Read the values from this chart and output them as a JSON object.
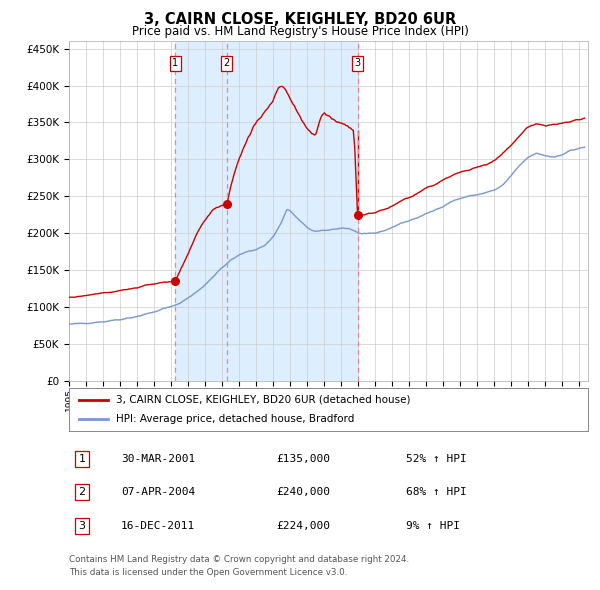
{
  "title": "3, CAIRN CLOSE, KEIGHLEY, BD20 6UR",
  "subtitle": "Price paid vs. HM Land Registry's House Price Index (HPI)",
  "legend_line1": "3, CAIRN CLOSE, KEIGHLEY, BD20 6UR (detached house)",
  "legend_line2": "HPI: Average price, detached house, Bradford",
  "footer_line1": "Contains HM Land Registry data © Crown copyright and database right 2024.",
  "footer_line2": "This data is licensed under the Open Government Licence v3.0.",
  "transactions": [
    {
      "num": 1,
      "date": "30-MAR-2001",
      "price": 135000,
      "pct": "52%",
      "dir": "↑"
    },
    {
      "num": 2,
      "date": "07-APR-2004",
      "price": 240000,
      "pct": "68%",
      "dir": "↑"
    },
    {
      "num": 3,
      "date": "16-DEC-2011",
      "price": 224000,
      "pct": "9%",
      "dir": "↑"
    }
  ],
  "transaction_dates_num": [
    2001.247,
    2004.27,
    2011.958
  ],
  "transaction_prices": [
    135000,
    240000,
    224000
  ],
  "hpi_color": "#7799cc",
  "price_color": "#cc0000",
  "background_color": "#ddeeff",
  "plot_bg": "#ffffff",
  "grid_color": "#cccccc",
  "dashed_line_color": "#ee8888",
  "ylim": [
    0,
    460000
  ],
  "yticks": [
    0,
    50000,
    100000,
    150000,
    200000,
    250000,
    300000,
    350000,
    400000,
    450000
  ],
  "xlim_start": 1995.0,
  "xlim_end": 2025.5,
  "shade_start": 2001.247,
  "shade_end": 2011.958,
  "hpi_anchors": [
    [
      1995.0,
      76000
    ],
    [
      1995.5,
      77000
    ],
    [
      1996.0,
      78000
    ],
    [
      1996.5,
      79000
    ],
    [
      1997.0,
      80000
    ],
    [
      1997.5,
      81500
    ],
    [
      1998.0,
      83000
    ],
    [
      1998.5,
      85000
    ],
    [
      1999.0,
      87000
    ],
    [
      1999.5,
      90000
    ],
    [
      2000.0,
      93000
    ],
    [
      2000.5,
      97000
    ],
    [
      2001.0,
      100000
    ],
    [
      2001.5,
      105000
    ],
    [
      2002.0,
      112000
    ],
    [
      2002.5,
      120000
    ],
    [
      2003.0,
      130000
    ],
    [
      2003.5,
      142000
    ],
    [
      2004.0,
      153000
    ],
    [
      2004.5,
      163000
    ],
    [
      2005.0,
      170000
    ],
    [
      2005.5,
      175000
    ],
    [
      2006.0,
      178000
    ],
    [
      2006.5,
      183000
    ],
    [
      2007.0,
      195000
    ],
    [
      2007.5,
      215000
    ],
    [
      2007.8,
      232000
    ],
    [
      2008.0,
      230000
    ],
    [
      2008.5,
      218000
    ],
    [
      2009.0,
      207000
    ],
    [
      2009.5,
      202000
    ],
    [
      2010.0,
      203000
    ],
    [
      2010.5,
      205000
    ],
    [
      2011.0,
      207000
    ],
    [
      2011.5,
      206000
    ],
    [
      2012.0,
      200000
    ],
    [
      2012.5,
      198000
    ],
    [
      2013.0,
      200000
    ],
    [
      2013.5,
      203000
    ],
    [
      2014.0,
      208000
    ],
    [
      2014.5,
      213000
    ],
    [
      2015.0,
      217000
    ],
    [
      2015.5,
      221000
    ],
    [
      2016.0,
      226000
    ],
    [
      2016.5,
      231000
    ],
    [
      2017.0,
      237000
    ],
    [
      2017.5,
      243000
    ],
    [
      2018.0,
      247000
    ],
    [
      2018.5,
      250000
    ],
    [
      2019.0,
      252000
    ],
    [
      2019.5,
      255000
    ],
    [
      2020.0,
      258000
    ],
    [
      2020.5,
      265000
    ],
    [
      2021.0,
      278000
    ],
    [
      2021.5,
      292000
    ],
    [
      2022.0,
      303000
    ],
    [
      2022.5,
      308000
    ],
    [
      2023.0,
      305000
    ],
    [
      2023.5,
      303000
    ],
    [
      2024.0,
      307000
    ],
    [
      2024.5,
      312000
    ],
    [
      2025.0,
      315000
    ],
    [
      2025.3,
      316000
    ]
  ],
  "price_anchors_seg1": [
    [
      1995.0,
      113000
    ],
    [
      1995.5,
      114000
    ],
    [
      1996.0,
      115500
    ],
    [
      1996.5,
      117000
    ],
    [
      1997.0,
      118500
    ],
    [
      1997.5,
      120000
    ],
    [
      1998.0,
      122000
    ],
    [
      1998.5,
      124000
    ],
    [
      1999.0,
      126000
    ],
    [
      1999.5,
      129000
    ],
    [
      2000.0,
      131000
    ],
    [
      2000.5,
      133000
    ],
    [
      2001.0,
      134000
    ],
    [
      2001.247,
      135000
    ]
  ],
  "price_anchors_seg2": [
    [
      2001.247,
      135000
    ],
    [
      2001.5,
      148000
    ],
    [
      2002.0,
      172000
    ],
    [
      2002.5,
      198000
    ],
    [
      2003.0,
      218000
    ],
    [
      2003.5,
      232000
    ],
    [
      2004.0,
      238000
    ],
    [
      2004.27,
      240000
    ]
  ],
  "price_anchors_seg3": [
    [
      2004.27,
      240000
    ],
    [
      2004.5,
      265000
    ],
    [
      2005.0,
      300000
    ],
    [
      2005.5,
      330000
    ],
    [
      2006.0,
      350000
    ],
    [
      2006.5,
      365000
    ],
    [
      2007.0,
      380000
    ],
    [
      2007.3,
      398000
    ],
    [
      2007.5,
      400000
    ],
    [
      2007.7,
      395000
    ],
    [
      2008.0,
      383000
    ],
    [
      2008.3,
      370000
    ],
    [
      2008.6,
      358000
    ],
    [
      2009.0,
      340000
    ],
    [
      2009.3,
      333000
    ],
    [
      2009.5,
      335000
    ],
    [
      2009.8,
      358000
    ],
    [
      2010.0,
      362000
    ],
    [
      2010.3,
      358000
    ],
    [
      2010.5,
      355000
    ],
    [
      2010.8,
      350000
    ],
    [
      2011.0,
      348000
    ],
    [
      2011.3,
      345000
    ],
    [
      2011.5,
      342000
    ],
    [
      2011.75,
      338000
    ],
    [
      2011.958,
      224000
    ]
  ],
  "price_anchors_seg4": [
    [
      2011.958,
      224000
    ],
    [
      2012.0,
      223000
    ],
    [
      2012.3,
      225000
    ],
    [
      2012.5,
      226000
    ],
    [
      2013.0,
      228000
    ],
    [
      2013.5,
      232000
    ],
    [
      2014.0,
      237000
    ],
    [
      2014.5,
      243000
    ],
    [
      2015.0,
      249000
    ],
    [
      2015.5,
      255000
    ],
    [
      2016.0,
      260000
    ],
    [
      2016.5,
      265000
    ],
    [
      2017.0,
      272000
    ],
    [
      2017.5,
      278000
    ],
    [
      2018.0,
      283000
    ],
    [
      2018.5,
      286000
    ],
    [
      2019.0,
      290000
    ],
    [
      2019.5,
      293000
    ],
    [
      2020.0,
      298000
    ],
    [
      2020.5,
      308000
    ],
    [
      2021.0,
      320000
    ],
    [
      2021.5,
      333000
    ],
    [
      2022.0,
      344000
    ],
    [
      2022.5,
      348000
    ],
    [
      2023.0,
      345000
    ],
    [
      2023.5,
      347000
    ],
    [
      2024.0,
      349000
    ],
    [
      2024.5,
      352000
    ],
    [
      2025.0,
      354000
    ],
    [
      2025.3,
      356000
    ]
  ]
}
